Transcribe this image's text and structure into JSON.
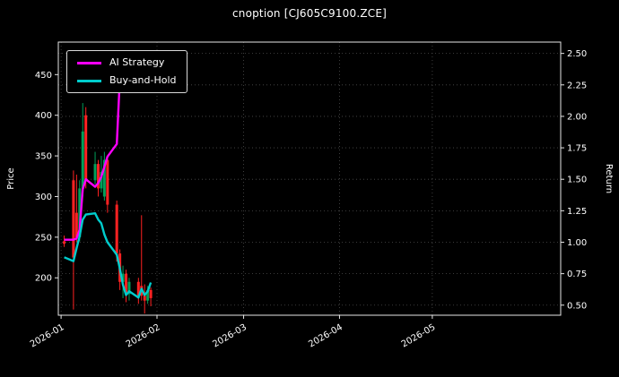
{
  "window": {
    "title": "cnoption [CJ605C9100.ZCE]"
  },
  "legend": {
    "items": [
      {
        "label": "AI Strategy",
        "color": "#ff00ff"
      },
      {
        "label": "Buy-and-Hold",
        "color": "#00cccc"
      }
    ]
  },
  "colors": {
    "background": "#000000",
    "text": "#ffffff",
    "grid": "#4d4d4d",
    "spine": "#e6e6e6",
    "candle_up": "#00a05a",
    "candle_down": "#ff2222"
  },
  "chart_data": {
    "type": "mixed-candlestick-line",
    "title": "cnoption [CJ605C9100.ZCE]",
    "grid": true,
    "legend_position": "upper-left",
    "x_axis": {
      "label": "",
      "tick_labels": [
        "2026-01",
        "2026-02",
        "2026-03",
        "2026-04",
        "2026-05"
      ],
      "day_range": [
        -0.9,
        161.5
      ],
      "epoch": "2026-01-01"
    },
    "price_axis": {
      "label": "Price",
      "ticks": [
        200,
        250,
        300,
        350,
        400,
        450
      ],
      "range": [
        154,
        490
      ]
    },
    "return_axis": {
      "label": "Return",
      "ticks": [
        0.5,
        0.75,
        1.0,
        1.25,
        1.5,
        1.75,
        2.0,
        2.25,
        2.5
      ],
      "range": [
        0.42,
        2.59
      ]
    },
    "dates": [
      "2026-01-02",
      "2026-01-05",
      "2026-01-06",
      "2026-01-07",
      "2026-01-08",
      "2026-01-09",
      "2026-01-12",
      "2026-01-13",
      "2026-01-14",
      "2026-01-15",
      "2026-01-16",
      "2026-01-19",
      "2026-01-20",
      "2026-01-21",
      "2026-01-22",
      "2026-01-23",
      "2026-01-26",
      "2026-01-27",
      "2026-01-28",
      "2026-01-29",
      "2026-01-30"
    ],
    "candles": {
      "open": [
        245,
        320,
        280,
        250,
        310,
        400,
        320,
        340,
        310,
        300,
        345,
        290,
        230,
        195,
        205,
        180,
        195,
        190,
        178,
        172,
        185
      ],
      "high": [
        252,
        332,
        327,
        320,
        415,
        410,
        355,
        345,
        350,
        355,
        350,
        295,
        235,
        215,
        210,
        200,
        200,
        277,
        192,
        190,
        188
      ],
      "low": [
        238,
        161,
        244,
        245,
        300,
        310,
        315,
        300,
        305,
        295,
        280,
        220,
        185,
        175,
        170,
        172,
        168,
        172,
        156,
        168,
        165
      ],
      "close": [
        242,
        225,
        250,
        310,
        380,
        320,
        340,
        310,
        330,
        345,
        290,
        230,
        195,
        205,
        180,
        195,
        178,
        178,
        172,
        185,
        175
      ]
    },
    "series": [
      {
        "name": "AI Strategy",
        "axis": "return",
        "color": "#ff00ff",
        "values": [
          1.02,
          1.02,
          1.03,
          1.1,
          1.42,
          1.5,
          1.44,
          1.47,
          1.52,
          1.6,
          1.68,
          1.78,
          2.3,
          2.38,
          2.49,
          null,
          null,
          null,
          null,
          null,
          null
        ]
      },
      {
        "name": "Buy-and-Hold",
        "axis": "return",
        "color": "#00cccc",
        "values": [
          0.88,
          0.85,
          0.95,
          1.05,
          1.18,
          1.22,
          1.23,
          1.18,
          1.15,
          1.06,
          1.0,
          0.9,
          0.79,
          0.66,
          0.58,
          0.61,
          0.56,
          0.63,
          0.58,
          0.61,
          0.68
        ]
      }
    ]
  }
}
